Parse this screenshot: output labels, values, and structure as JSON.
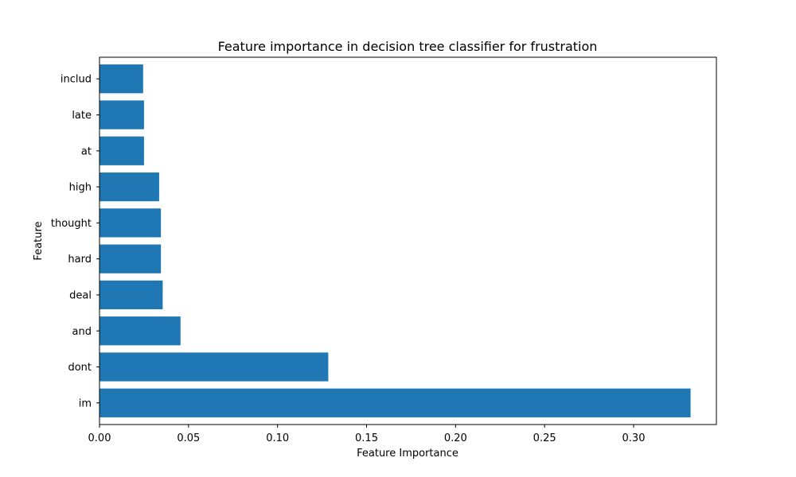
{
  "chart_data": {
    "type": "bar",
    "orientation": "horizontal",
    "title": "Feature importance in decision tree classifier for frustration",
    "xlabel": "Feature Importance",
    "ylabel": "Feature",
    "categories": [
      "im",
      "dont",
      "and",
      "deal",
      "hard",
      "thought",
      "high",
      "at",
      "late",
      "includ"
    ],
    "values": [
      0.332,
      0.1285,
      0.0455,
      0.0355,
      0.0345,
      0.0345,
      0.0335,
      0.025,
      0.025,
      0.0245
    ],
    "xlim": [
      0,
      0.3465
    ],
    "xticks": [
      0.0,
      0.05,
      0.1,
      0.15,
      0.2,
      0.25,
      0.3
    ],
    "xtick_labels": [
      "0.00",
      "0.05",
      "0.10",
      "0.15",
      "0.20",
      "0.25",
      "0.30"
    ],
    "grid": false,
    "bar_color": "#1f77b4"
  }
}
